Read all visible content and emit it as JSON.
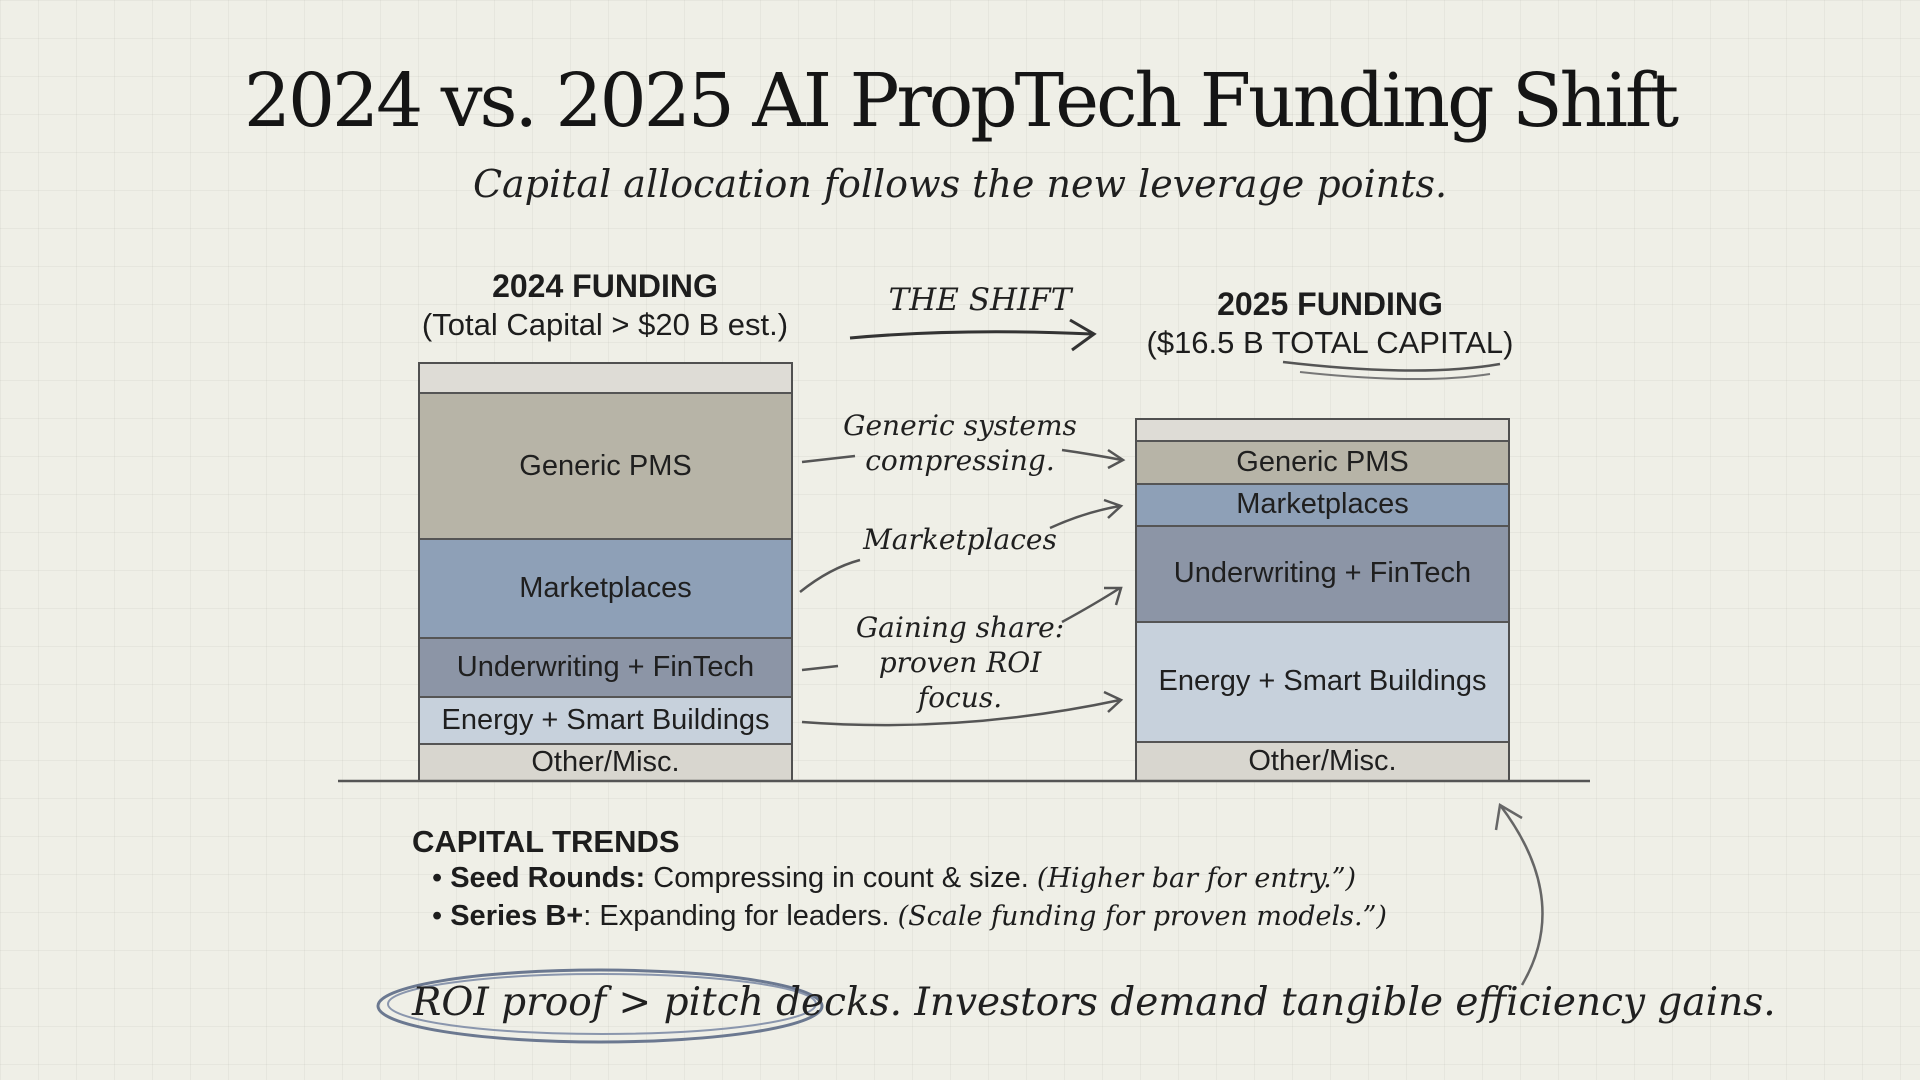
{
  "title": "2024 vs. 2025 AI PropTech Funding Shift",
  "subtitle": "Capital allocation follows the new leverage points.",
  "shift_label": "THE SHIFT",
  "left_column": {
    "heading": "2024 FUNDING",
    "subheading": "(Total Capital > $20 B est.)"
  },
  "right_column": {
    "heading": "2025 FUNDING",
    "subheading": "($16.5 B TOTAL CAPITAL)"
  },
  "annotations": {
    "generic": "Generic systems compressing.",
    "marketplaces": "Marketplaces",
    "gaining": "Gaining share: proven ROI focus."
  },
  "chart_data": {
    "type": "bar",
    "stacked": true,
    "unit": "share of total (estimated from bar heights)",
    "categories": [
      "2024",
      "2025"
    ],
    "series": [
      {
        "name": "Other/Misc.",
        "values": [
          10,
          11
        ],
        "color": "#d8d6cf"
      },
      {
        "name": "Energy + Smart Buildings",
        "values": [
          13,
          34
        ],
        "color": "#c7d1dc"
      },
      {
        "name": "Underwriting + FinTech",
        "values": [
          16,
          27
        ],
        "color": "#8c95a6"
      },
      {
        "name": "Marketplaces",
        "values": [
          27,
          12
        ],
        "color": "#8ea0b7"
      },
      {
        "name": "Generic PMS",
        "values": [
          40,
          12
        ],
        "color": "#b7b4a7"
      }
    ],
    "grid": true,
    "legend": "none"
  },
  "trends": {
    "heading": "CAPITAL TRENDS",
    "items": [
      {
        "label": "Seed Rounds:",
        "text": "Compressing in count & size.",
        "note": "(Higher bar for entry.”)"
      },
      {
        "label": "Series B+",
        "text": ":  Expanding for leaders.",
        "note": "(Scale funding for proven models.”)"
      }
    ]
  },
  "footer": {
    "highlight": "ROI proof > pitch decks.",
    "rest": "Investors demand tangible efficiency gains."
  },
  "colors": {
    "ink": "#1d1d1d",
    "paper": "#efefe7",
    "grid": "#c9c9c2"
  }
}
